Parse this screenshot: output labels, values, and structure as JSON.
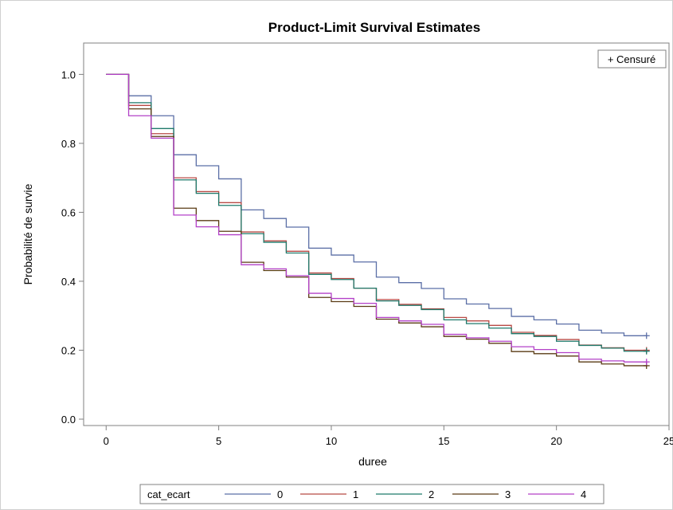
{
  "chart_data": {
    "type": "line",
    "title": "Product-Limit Survival Estimates",
    "xlabel": "duree",
    "ylabel": "Probabilité de survie",
    "xlim": [
      -1,
      25
    ],
    "ylim": [
      0,
      1.0
    ],
    "x_ticks": [
      "0",
      "5",
      "10",
      "15",
      "20",
      "25"
    ],
    "y_ticks": [
      "0.0",
      "0.2",
      "0.4",
      "0.6",
      "0.8",
      "1.0"
    ],
    "censor_label": "+ Censuré",
    "legend_title": "cat_ecart",
    "legend_position": "bottom",
    "x": [
      0,
      1,
      2,
      3,
      4,
      5,
      6,
      7,
      8,
      9,
      10,
      11,
      12,
      13,
      14,
      15,
      16,
      17,
      18,
      19,
      20,
      21,
      22,
      23,
      24
    ],
    "series": [
      {
        "name": "0",
        "color": "#5b6fa6",
        "values": [
          1.0,
          0.938,
          0.88,
          0.767,
          0.735,
          0.697,
          0.607,
          0.582,
          0.557,
          0.496,
          0.476,
          0.456,
          0.412,
          0.396,
          0.379,
          0.349,
          0.334,
          0.321,
          0.298,
          0.288,
          0.276,
          0.258,
          0.25,
          0.242,
          0.242
        ]
      },
      {
        "name": "1",
        "color": "#b84a45",
        "values": [
          1.0,
          0.91,
          0.828,
          0.7,
          0.66,
          0.628,
          0.543,
          0.517,
          0.487,
          0.424,
          0.408,
          0.38,
          0.347,
          0.333,
          0.32,
          0.295,
          0.285,
          0.272,
          0.252,
          0.243,
          0.231,
          0.215,
          0.207,
          0.2,
          0.2
        ]
      },
      {
        "name": "2",
        "color": "#1f7a6b",
        "values": [
          1.0,
          0.918,
          0.843,
          0.694,
          0.655,
          0.62,
          0.538,
          0.513,
          0.482,
          0.42,
          0.405,
          0.38,
          0.343,
          0.33,
          0.318,
          0.288,
          0.277,
          0.264,
          0.248,
          0.24,
          0.226,
          0.214,
          0.206,
          0.197,
          0.197
        ]
      },
      {
        "name": "3",
        "color": "#5a3b14",
        "values": [
          1.0,
          0.9,
          0.82,
          0.612,
          0.576,
          0.545,
          0.455,
          0.431,
          0.412,
          0.353,
          0.341,
          0.327,
          0.29,
          0.279,
          0.268,
          0.24,
          0.232,
          0.22,
          0.196,
          0.19,
          0.183,
          0.166,
          0.16,
          0.155,
          0.155
        ]
      },
      {
        "name": "4",
        "color": "#b341c8",
        "values": [
          1.0,
          0.88,
          0.815,
          0.592,
          0.558,
          0.535,
          0.448,
          0.436,
          0.416,
          0.365,
          0.35,
          0.336,
          0.295,
          0.285,
          0.275,
          0.246,
          0.236,
          0.226,
          0.21,
          0.202,
          0.193,
          0.174,
          0.169,
          0.166,
          0.166
        ]
      }
    ]
  }
}
